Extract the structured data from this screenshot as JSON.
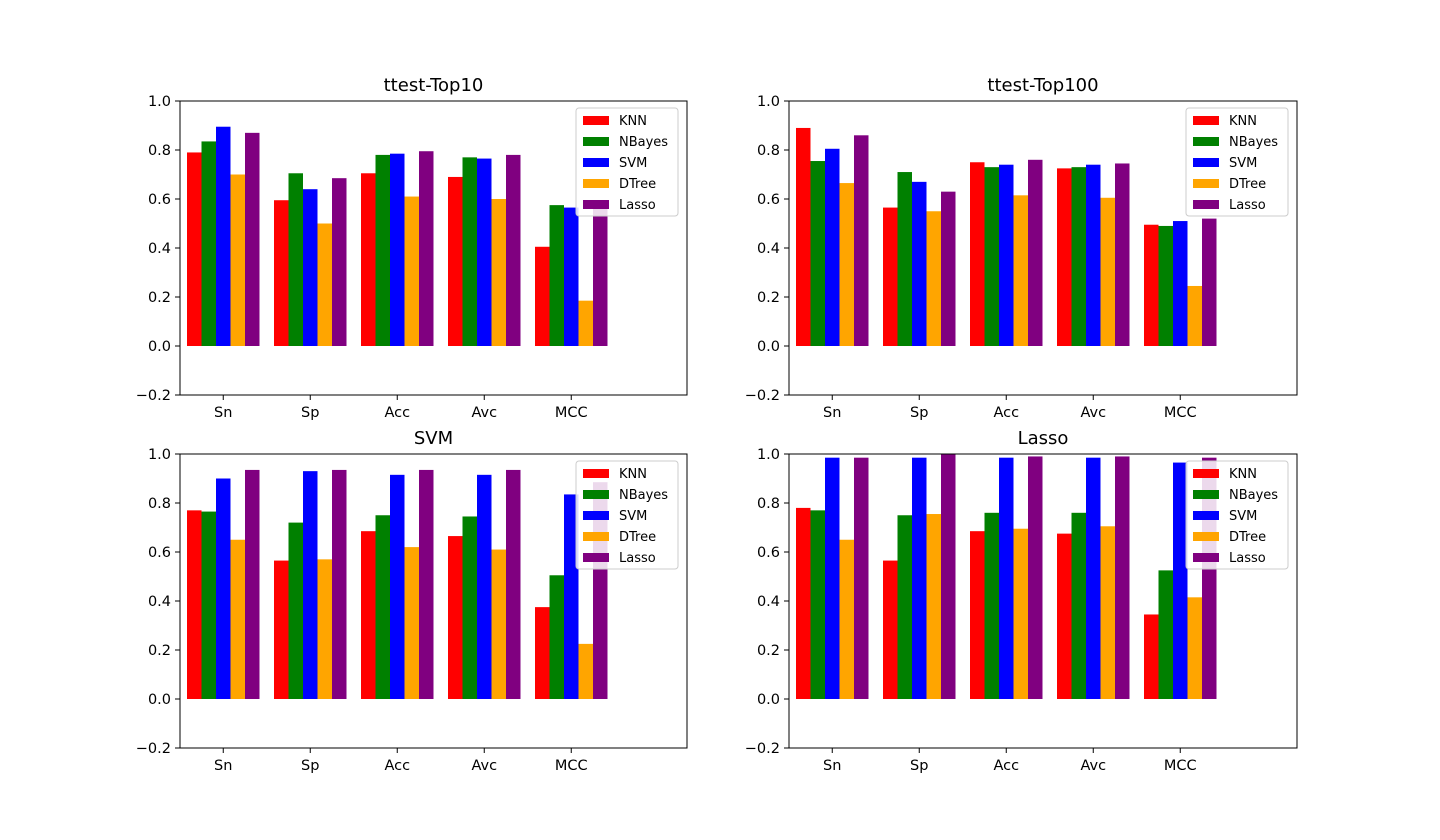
{
  "chart_data": [
    {
      "type": "bar",
      "title": "ttest-Top10",
      "categories": [
        "Sn",
        "Sp",
        "Acc",
        "Avc",
        "MCC"
      ],
      "ylim": [
        -0.2,
        1.0
      ],
      "yticks": [
        "−0.2",
        "0.0",
        "0.2",
        "0.4",
        "0.6",
        "0.8",
        "1.0"
      ],
      "ytick_values": [
        -0.2,
        0.0,
        0.2,
        0.4,
        0.6,
        0.8,
        1.0
      ],
      "grid": false,
      "legend_position": "upper-right",
      "series": [
        {
          "name": "KNN",
          "color": "#ff0000",
          "values": [
            0.79,
            0.595,
            0.705,
            0.69,
            0.405
          ]
        },
        {
          "name": "NBayes",
          "color": "#008000",
          "values": [
            0.835,
            0.705,
            0.78,
            0.77,
            0.575
          ]
        },
        {
          "name": "SVM",
          "color": "#0000ff",
          "values": [
            0.895,
            0.64,
            0.785,
            0.765,
            0.565
          ]
        },
        {
          "name": "DTree",
          "color": "#ffa500",
          "values": [
            0.7,
            0.5,
            0.61,
            0.6,
            0.185
          ]
        },
        {
          "name": "Lasso",
          "color": "#800080",
          "values": [
            0.87,
            0.685,
            0.795,
            0.78,
            0.59
          ]
        }
      ]
    },
    {
      "type": "bar",
      "title": "ttest-Top100",
      "categories": [
        "Sn",
        "Sp",
        "Acc",
        "Avc",
        "MCC"
      ],
      "ylim": [
        -0.2,
        1.0
      ],
      "yticks": [
        "−0.2",
        "0.0",
        "0.2",
        "0.4",
        "0.6",
        "0.8",
        "1.0"
      ],
      "ytick_values": [
        -0.2,
        0.0,
        0.2,
        0.4,
        0.6,
        0.8,
        1.0
      ],
      "grid": false,
      "legend_position": "upper-right",
      "series": [
        {
          "name": "KNN",
          "color": "#ff0000",
          "values": [
            0.89,
            0.565,
            0.75,
            0.725,
            0.495
          ]
        },
        {
          "name": "NBayes",
          "color": "#008000",
          "values": [
            0.755,
            0.71,
            0.73,
            0.73,
            0.49
          ]
        },
        {
          "name": "SVM",
          "color": "#0000ff",
          "values": [
            0.805,
            0.67,
            0.74,
            0.74,
            0.51
          ]
        },
        {
          "name": "DTree",
          "color": "#ffa500",
          "values": [
            0.665,
            0.55,
            0.615,
            0.605,
            0.245
          ]
        },
        {
          "name": "Lasso",
          "color": "#800080",
          "values": [
            0.86,
            0.63,
            0.76,
            0.745,
            0.52
          ]
        }
      ]
    },
    {
      "type": "bar",
      "title": "SVM",
      "categories": [
        "Sn",
        "Sp",
        "Acc",
        "Avc",
        "MCC"
      ],
      "ylim": [
        -0.2,
        1.0
      ],
      "yticks": [
        "−0.2",
        "0.0",
        "0.2",
        "0.4",
        "0.6",
        "0.8",
        "1.0"
      ],
      "ytick_values": [
        -0.2,
        0.0,
        0.2,
        0.4,
        0.6,
        0.8,
        1.0
      ],
      "grid": false,
      "legend_position": "upper-right",
      "series": [
        {
          "name": "KNN",
          "color": "#ff0000",
          "values": [
            0.77,
            0.565,
            0.685,
            0.665,
            0.375
          ]
        },
        {
          "name": "NBayes",
          "color": "#008000",
          "values": [
            0.765,
            0.72,
            0.75,
            0.745,
            0.505
          ]
        },
        {
          "name": "SVM",
          "color": "#0000ff",
          "values": [
            0.9,
            0.93,
            0.915,
            0.915,
            0.835
          ]
        },
        {
          "name": "DTree",
          "color": "#ffa500",
          "values": [
            0.65,
            0.57,
            0.62,
            0.61,
            0.225
          ]
        },
        {
          "name": "Lasso",
          "color": "#800080",
          "values": [
            0.935,
            0.935,
            0.935,
            0.935,
            0.885
          ]
        }
      ]
    },
    {
      "type": "bar",
      "title": "Lasso",
      "categories": [
        "Sn",
        "Sp",
        "Acc",
        "Avc",
        "MCC"
      ],
      "ylim": [
        -0.2,
        1.0
      ],
      "yticks": [
        "−0.2",
        "0.0",
        "0.2",
        "0.4",
        "0.6",
        "0.8",
        "1.0"
      ],
      "ytick_values": [
        -0.2,
        0.0,
        0.2,
        0.4,
        0.6,
        0.8,
        1.0
      ],
      "grid": false,
      "legend_position": "upper-right",
      "series": [
        {
          "name": "KNN",
          "color": "#ff0000",
          "values": [
            0.78,
            0.565,
            0.685,
            0.675,
            0.345
          ]
        },
        {
          "name": "NBayes",
          "color": "#008000",
          "values": [
            0.77,
            0.75,
            0.76,
            0.76,
            0.525
          ]
        },
        {
          "name": "SVM",
          "color": "#0000ff",
          "values": [
            0.985,
            0.985,
            0.985,
            0.985,
            0.965
          ]
        },
        {
          "name": "DTree",
          "color": "#ffa500",
          "values": [
            0.65,
            0.755,
            0.695,
            0.705,
            0.415
          ]
        },
        {
          "name": "Lasso",
          "color": "#800080",
          "values": [
            0.985,
            1.0,
            0.99,
            0.99,
            0.985
          ]
        }
      ]
    }
  ]
}
